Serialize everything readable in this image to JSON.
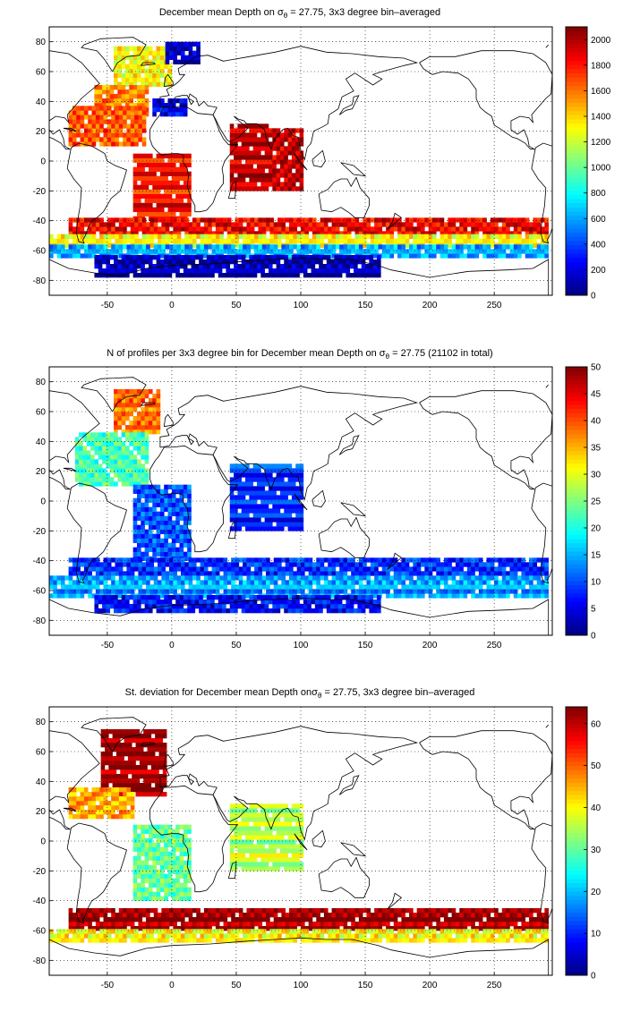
{
  "chart_data": [
    {
      "type": "heatmap",
      "title_prefix": "December mean Depth on ",
      "title_symbol": "σ",
      "title_subscript": "θ",
      "title_suffix": " = 27.75, 3x3 degree bin–averaged",
      "xticks": [
        "-50",
        "0",
        "50",
        "100",
        "150",
        "200",
        "250"
      ],
      "yticks": [
        "80",
        "60",
        "40",
        "20",
        "0",
        "-20",
        "-40",
        "-60",
        "-80"
      ],
      "xlim": [
        -95,
        295
      ],
      "ylim": [
        -90,
        90
      ],
      "grid": true,
      "colorbar_ticks": [
        "0",
        "200",
        "400",
        "600",
        "800",
        "1000",
        "1200",
        "1400",
        "1600",
        "1800",
        "2000"
      ],
      "colorbar_range": [
        0,
        2100
      ],
      "colormap": "jet",
      "regions": [
        {
          "lon": [
            -45,
            0
          ],
          "lat": [
            50,
            75
          ],
          "value": 1300
        },
        {
          "lon": [
            -60,
            -20
          ],
          "lat": [
            30,
            50
          ],
          "value": 1550
        },
        {
          "lon": [
            -80,
            -20
          ],
          "lat": [
            10,
            35
          ],
          "value": 1650
        },
        {
          "lon": [
            -15,
            10
          ],
          "lat": [
            30,
            40
          ],
          "value": 200
        },
        {
          "lon": [
            -30,
            15
          ],
          "lat": [
            -40,
            5
          ],
          "value": 1800
        },
        {
          "lon": [
            45,
            75
          ],
          "lat": [
            -20,
            25
          ],
          "value": 1950
        },
        {
          "lon": [
            75,
            100
          ],
          "lat": [
            -20,
            20
          ],
          "value": 1950
        },
        {
          "lon": [
            -80,
            290
          ],
          "lat": [
            -50,
            -40
          ],
          "value": 1850
        },
        {
          "lon": [
            -95,
            290
          ],
          "lat": [
            -58,
            -50
          ],
          "value": 1300
        },
        {
          "lon": [
            -95,
            290
          ],
          "lat": [
            -65,
            -58
          ],
          "value": 600
        },
        {
          "lon": [
            -60,
            160
          ],
          "lat": [
            -78,
            -65
          ],
          "value": 80
        },
        {
          "lon": [
            -5,
            20
          ],
          "lat": [
            65,
            80
          ],
          "value": 100
        }
      ]
    },
    {
      "type": "heatmap",
      "title_prefix": "N of profiles per 3x3 degree bin for December mean Depth on ",
      "title_symbol": "σ",
      "title_subscript": "θ",
      "title_suffix": " = 27.75 (21102 in total)",
      "xticks": [
        "-50",
        "0",
        "50",
        "100",
        "150",
        "200",
        "250"
      ],
      "yticks": [
        "80",
        "60",
        "40",
        "20",
        "0",
        "-20",
        "-40",
        "-60",
        "-80"
      ],
      "xlim": [
        -95,
        295
      ],
      "ylim": [
        -90,
        90
      ],
      "grid": true,
      "colorbar_ticks": [
        "0",
        "5",
        "10",
        "15",
        "20",
        "25",
        "30",
        "35",
        "40",
        "45",
        "50"
      ],
      "colorbar_range": [
        0,
        50
      ],
      "colormap": "jet",
      "regions": [
        {
          "lon": [
            -45,
            -10
          ],
          "lat": [
            45,
            75
          ],
          "value": 38
        },
        {
          "lon": [
            -75,
            -20
          ],
          "lat": [
            10,
            45
          ],
          "value": 22
        },
        {
          "lon": [
            -30,
            15
          ],
          "lat": [
            -40,
            10
          ],
          "value": 10
        },
        {
          "lon": [
            45,
            100
          ],
          "lat": [
            -20,
            25
          ],
          "value": 8
        },
        {
          "lon": [
            -80,
            290
          ],
          "lat": [
            -50,
            -40
          ],
          "value": 8
        },
        {
          "lon": [
            -95,
            290
          ],
          "lat": [
            -65,
            -50
          ],
          "value": 14
        },
        {
          "lon": [
            -60,
            160
          ],
          "lat": [
            -75,
            -65
          ],
          "value": 6
        }
      ]
    },
    {
      "type": "heatmap",
      "title_prefix": "St. deviation for December mean Depth on",
      "title_symbol": "σ",
      "title_subscript": "θ",
      "title_suffix": " = 27.75, 3x3 degree bin–averaged",
      "xticks": [
        "-50",
        "0",
        "50",
        "100",
        "150",
        "200",
        "250"
      ],
      "yticks": [
        "80",
        "60",
        "40",
        "20",
        "0",
        "-20",
        "-40",
        "-60",
        "-80"
      ],
      "xlim": [
        -95,
        295
      ],
      "ylim": [
        -90,
        90
      ],
      "grid": true,
      "colorbar_ticks": [
        "0",
        "10",
        "20",
        "30",
        "40",
        "50",
        "60"
      ],
      "colorbar_range": [
        0,
        64
      ],
      "colormap": "jet",
      "regions": [
        {
          "lon": [
            -55,
            -5
          ],
          "lat": [
            30,
            75
          ],
          "value": 62
        },
        {
          "lon": [
            -80,
            -30
          ],
          "lat": [
            15,
            35
          ],
          "value": 45
        },
        {
          "lon": [
            -30,
            15
          ],
          "lat": [
            -40,
            10
          ],
          "value": 30
        },
        {
          "lon": [
            45,
            100
          ],
          "lat": [
            -20,
            25
          ],
          "value": 35
        },
        {
          "lon": [
            -80,
            290
          ],
          "lat": [
            -60,
            -45
          ],
          "value": 62
        },
        {
          "lon": [
            -95,
            290
          ],
          "lat": [
            -68,
            -60
          ],
          "value": 40
        }
      ]
    }
  ]
}
